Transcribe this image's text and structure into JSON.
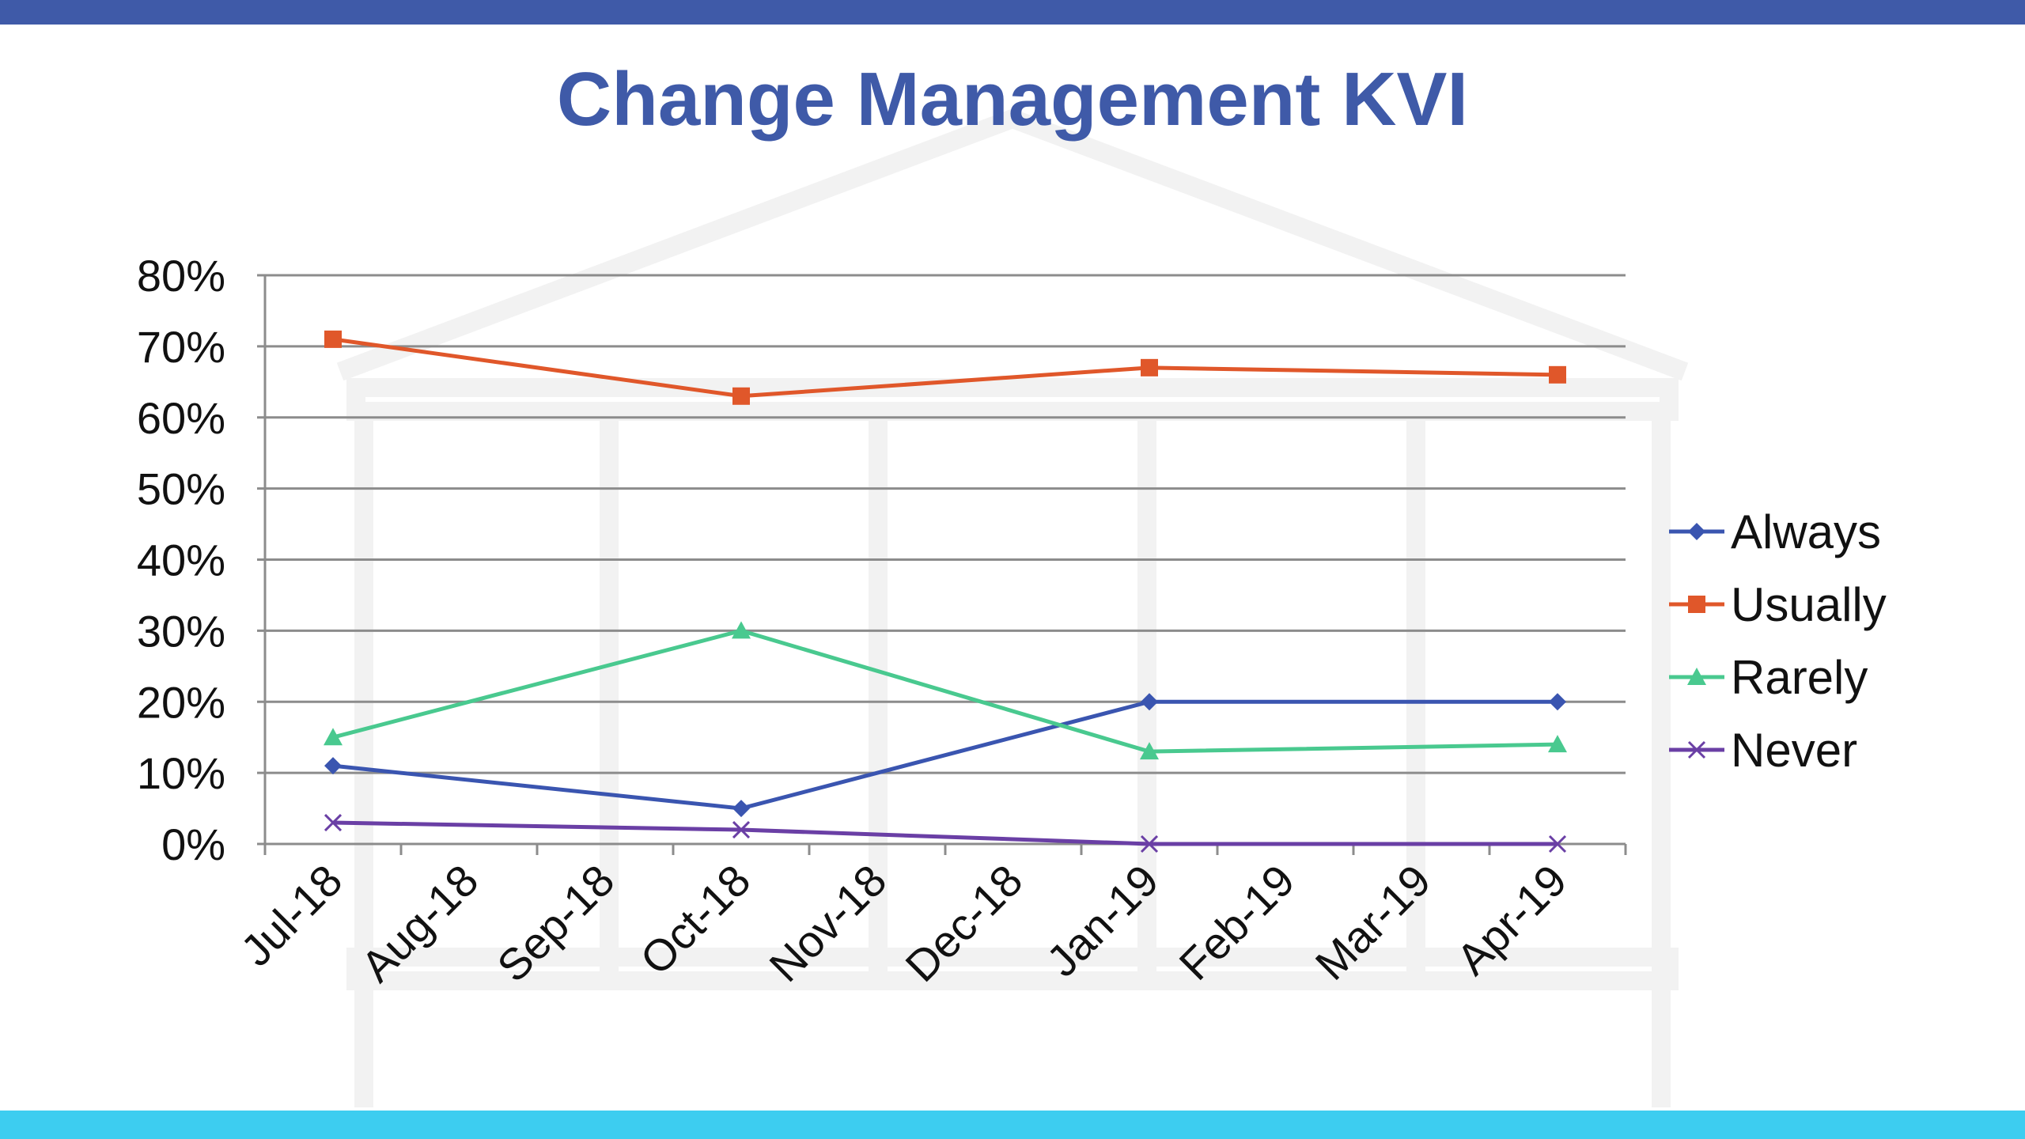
{
  "title": "Change Management KVI",
  "colors": {
    "top_bar": "#3f5aa8",
    "bottom_bar": "#3dcdf0",
    "title": "#3f5aa8",
    "gridline": "#8c8c8c"
  },
  "chart_data": {
    "type": "line",
    "title": "Change Management KVI",
    "xlabel": "",
    "ylabel": "",
    "x": [
      "Jul-18",
      "Aug-18",
      "Sep-18",
      "Oct-18",
      "Nov-18",
      "Dec-18",
      "Jan-19",
      "Feb-19",
      "Mar-19",
      "Apr-19"
    ],
    "y_ticks": [
      "0%",
      "10%",
      "20%",
      "30%",
      "40%",
      "50%",
      "60%",
      "70%",
      "80%"
    ],
    "ylim": [
      0,
      80
    ],
    "grid": true,
    "legend_position": "right",
    "series": [
      {
        "name": "Always",
        "color": "#3a55b0",
        "marker": "diamond",
        "points": [
          [
            "Jul-18",
            11
          ],
          [
            "Oct-18",
            5
          ],
          [
            "Jan-19",
            20
          ],
          [
            "Apr-19",
            20
          ]
        ]
      },
      {
        "name": "Usually",
        "color": "#e0572a",
        "marker": "square",
        "points": [
          [
            "Jul-18",
            71
          ],
          [
            "Oct-18",
            63
          ],
          [
            "Jan-19",
            67
          ],
          [
            "Apr-19",
            66
          ]
        ]
      },
      {
        "name": "Rarely",
        "color": "#49c98f",
        "marker": "triangle",
        "points": [
          [
            "Jul-18",
            15
          ],
          [
            "Oct-18",
            30
          ],
          [
            "Jan-19",
            13
          ],
          [
            "Apr-19",
            14
          ]
        ]
      },
      {
        "name": "Never",
        "color": "#6a3fa5",
        "marker": "x",
        "points": [
          [
            "Jul-18",
            3
          ],
          [
            "Oct-18",
            2
          ],
          [
            "Jan-19",
            0
          ],
          [
            "Apr-19",
            0
          ]
        ]
      }
    ]
  }
}
